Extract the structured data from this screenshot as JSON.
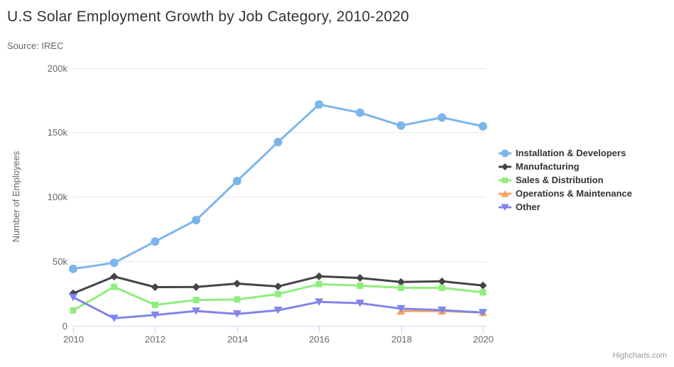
{
  "credits": "Highcharts.com",
  "colors": {
    "grid_line": "#e6e6e6",
    "axis_line": "#ccd6eb",
    "tick": "#ccd6eb",
    "axis_label": "#666666",
    "axis_title": "#666666",
    "chart_title": "#333333",
    "subtitle_text": "#666666",
    "legend_text": "#333333",
    "credit_text": "#999999",
    "background": "#ffffff"
  },
  "chart_data": {
    "type": "line",
    "title": "U.S Solar Employment Growth by Job Category, 2010-2020",
    "subtitle": "Source: IREC",
    "xlabel": "",
    "ylabel": "Number of Employees",
    "x": [
      2010,
      2011,
      2012,
      2013,
      2014,
      2015,
      2016,
      2017,
      2018,
      2019,
      2020
    ],
    "xtick_labels": [
      "2010",
      "2012",
      "2014",
      "2016",
      "2018",
      "2020"
    ],
    "ylim": [
      0,
      200000
    ],
    "ytick_interval": 50000,
    "ytick_labels": [
      "0",
      "50k",
      "100k",
      "150k",
      "200k"
    ],
    "grid": true,
    "legend_position": "right",
    "series": [
      {
        "name": "Installation & Developers",
        "color": "#7cb5ec",
        "marker": "circle",
        "values": [
          43934,
          48656,
          65165,
          81827,
          112143,
          142383,
          171533,
          165174,
          155157,
          161454,
          154610
        ]
      },
      {
        "name": "Manufacturing",
        "color": "#434348",
        "marker": "diamond",
        "values": [
          24916,
          37941,
          29742,
          29851,
          32490,
          30282,
          38121,
          36885,
          33726,
          34243,
          31050
        ]
      },
      {
        "name": "Sales & Distribution",
        "color": "#90ed7d",
        "marker": "square",
        "values": [
          11744,
          30000,
          16005,
          19771,
          20185,
          24377,
          32147,
          30912,
          29243,
          29213,
          25663
        ]
      },
      {
        "name": "Operations & Maintenance",
        "color": "#f7a35c",
        "marker": "triangle",
        "values": [
          null,
          null,
          null,
          null,
          null,
          null,
          null,
          null,
          11164,
          11218,
          10077
        ]
      },
      {
        "name": "Other",
        "color": "#8085e9",
        "marker": "triangle-down",
        "values": [
          21908,
          5548,
          8105,
          11248,
          8989,
          11816,
          18274,
          17300,
          13053,
          11906,
          10073
        ]
      }
    ]
  }
}
